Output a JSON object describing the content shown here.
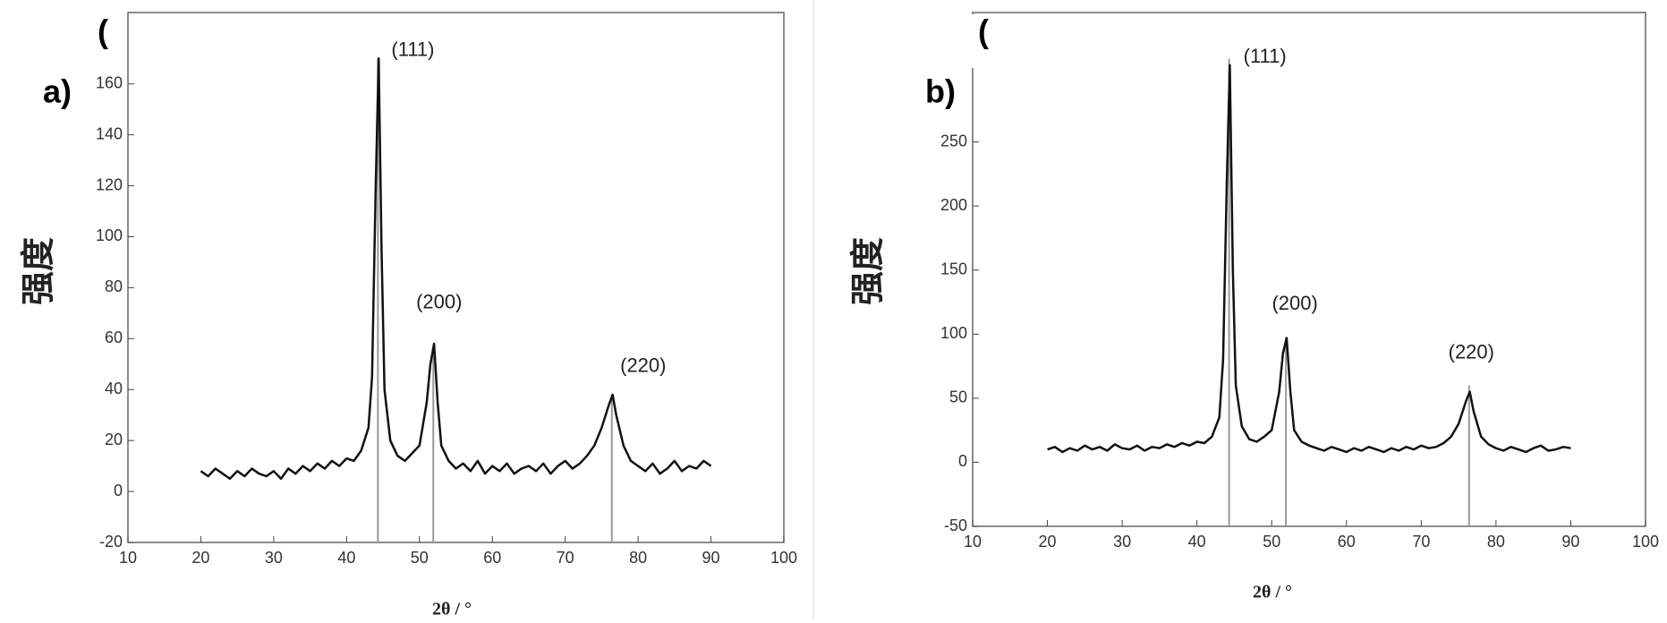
{
  "chart_data": [
    {
      "type": "line",
      "panel_prefix": "(",
      "panel_label": "a)",
      "y_label": "强度",
      "x_label": "2θ / °",
      "xlim": [
        10,
        100
      ],
      "xticks": [
        10,
        20,
        30,
        40,
        50,
        60,
        70,
        80,
        90,
        100
      ],
      "ylim": [
        -20,
        188
      ],
      "yticks": [
        -20,
        0,
        20,
        40,
        60,
        80,
        100,
        120,
        140,
        160
      ],
      "x": [
        20,
        21,
        22,
        23,
        24,
        25,
        26,
        27,
        28,
        29,
        30,
        31,
        32,
        33,
        34,
        35,
        36,
        37,
        38,
        39,
        40,
        41,
        42,
        43,
        43.5,
        44,
        44.4,
        44.8,
        45.2,
        46,
        47,
        48,
        49,
        50,
        51,
        51.5,
        52,
        52.5,
        53,
        54,
        55,
        56,
        57,
        58,
        59,
        60,
        61,
        62,
        63,
        64,
        65,
        66,
        67,
        68,
        69,
        70,
        71,
        72,
        73,
        74,
        75,
        76,
        76.5,
        77,
        78,
        79,
        80,
        81,
        82,
        83,
        84,
        85,
        86,
        87,
        88,
        89,
        90
      ],
      "series": [
        {
          "color": "#111111",
          "values": [
            8,
            6,
            9,
            7,
            5,
            8,
            6,
            9,
            7,
            6,
            8,
            5,
            9,
            7,
            10,
            8,
            11,
            9,
            12,
            10,
            13,
            12,
            16,
            25,
            45,
            120,
            170,
            95,
            40,
            20,
            14,
            12,
            15,
            18,
            35,
            50,
            58,
            35,
            18,
            12,
            9,
            11,
            8,
            12,
            7,
            10,
            8,
            11,
            7,
            9,
            10,
            8,
            11,
            7,
            10,
            12,
            9,
            11,
            14,
            18,
            25,
            34,
            38,
            30,
            18,
            12,
            10,
            8,
            11,
            7,
            9,
            12,
            8,
            10,
            9,
            12,
            10
          ]
        }
      ],
      "reference_lines": {
        "color": "#999999",
        "x": [
          44.3,
          51.9,
          76.4
        ],
        "values": [
          170,
          55,
          38
        ]
      },
      "annotations": [
        {
          "text": "(111)",
          "x": 49.1,
          "y": 173
        },
        {
          "text": "(200)",
          "x": 52.7,
          "y": 74
        },
        {
          "text": "(220)",
          "x": 80.7,
          "y": 49
        }
      ]
    },
    {
      "type": "line",
      "panel_prefix": "(",
      "panel_label": "b)",
      "y_label": "强度",
      "x_label": "2θ / °",
      "xlim": [
        10,
        100
      ],
      "xticks": [
        10,
        20,
        30,
        40,
        50,
        60,
        70,
        80,
        90,
        100
      ],
      "ylim": [
        -50,
        351
      ],
      "yticks": [
        -50,
        0,
        50,
        100,
        150,
        200,
        250
      ],
      "x": [
        20,
        21,
        22,
        23,
        24,
        25,
        26,
        27,
        28,
        29,
        30,
        31,
        32,
        33,
        34,
        35,
        36,
        37,
        38,
        39,
        40,
        41,
        42,
        43,
        43.5,
        44,
        44.4,
        44.8,
        45.2,
        46,
        47,
        48,
        49,
        50,
        51,
        51.5,
        52,
        52.5,
        53,
        54,
        55,
        56,
        57,
        58,
        59,
        60,
        61,
        62,
        63,
        64,
        65,
        66,
        67,
        68,
        69,
        70,
        71,
        72,
        73,
        74,
        75,
        76,
        76.5,
        77,
        78,
        79,
        80,
        81,
        82,
        83,
        84,
        85,
        86,
        87,
        88,
        89,
        90
      ],
      "series": [
        {
          "color": "#111111",
          "values": [
            10,
            12,
            8,
            11,
            9,
            13,
            10,
            12,
            9,
            14,
            11,
            10,
            13,
            9,
            12,
            11,
            14,
            12,
            15,
            13,
            16,
            15,
            20,
            35,
            80,
            220,
            310,
            150,
            60,
            28,
            18,
            16,
            20,
            25,
            55,
            85,
            97,
            55,
            25,
            16,
            13,
            11,
            9,
            12,
            10,
            8,
            11,
            9,
            12,
            10,
            8,
            11,
            9,
            12,
            10,
            13,
            11,
            12,
            15,
            20,
            30,
            48,
            55,
            40,
            20,
            14,
            11,
            9,
            12,
            10,
            8,
            11,
            13,
            9,
            10,
            12,
            11
          ]
        }
      ],
      "reference_lines": {
        "color": "#999999",
        "x": [
          44.3,
          51.9,
          76.4
        ],
        "values": [
          315,
          97,
          60
        ]
      },
      "annotations": [
        {
          "text": "(111)",
          "x": 49.1,
          "y": 316
        },
        {
          "text": "(200)",
          "x": 53.1,
          "y": 123
        },
        {
          "text": "(220)",
          "x": 76.7,
          "y": 85
        }
      ]
    }
  ]
}
